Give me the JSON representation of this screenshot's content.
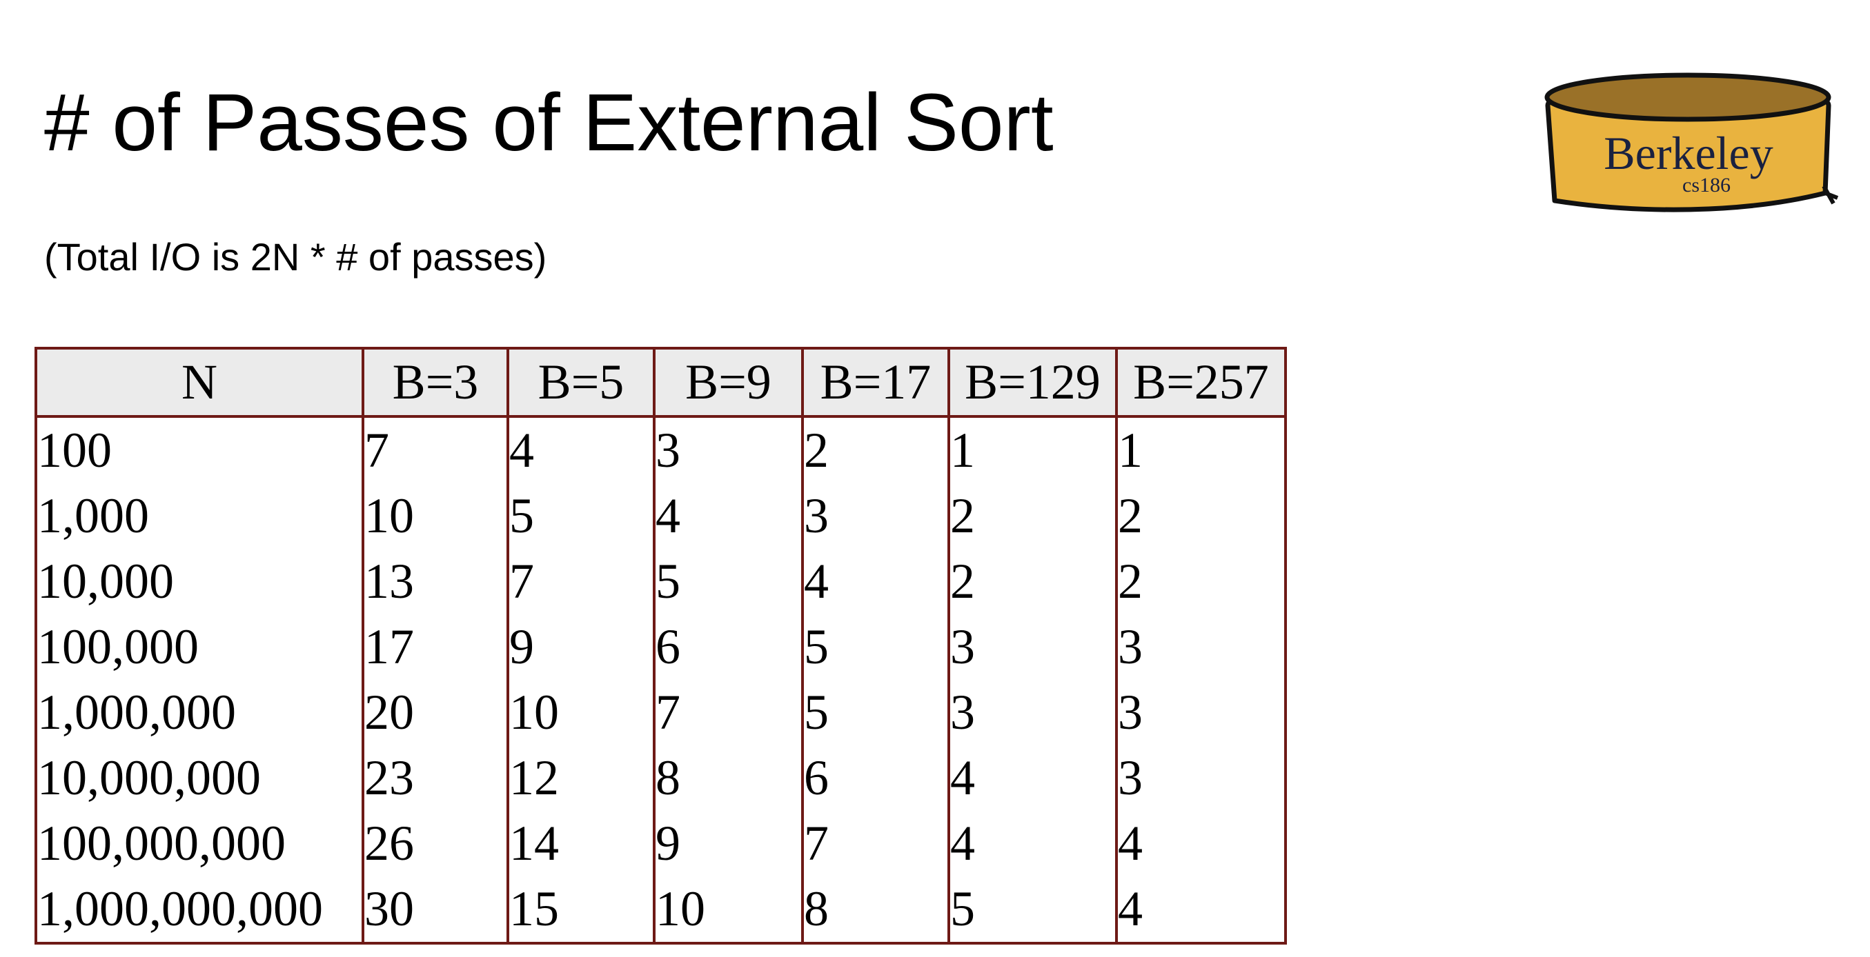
{
  "slide": {
    "title": "# of Passes of External Sort",
    "subtitle": "(Total I/O is 2N * # of passes)"
  },
  "logo": {
    "icon": "berkeley-cs186-logo",
    "text": "Berkeley",
    "subtext": "cs186",
    "colors": {
      "fill": "#e9b33f",
      "top": "#9a7128",
      "outline": "#111111"
    }
  },
  "colors": {
    "table_border": "#6e1a16",
    "header_bg": "#ebebeb"
  },
  "table": {
    "headers": [
      "N",
      "B=3",
      "B=5",
      "B=9",
      "B=17",
      "B=129",
      "B=257"
    ],
    "rows": [
      [
        "100",
        "7",
        "4",
        "3",
        "2",
        "1",
        "1"
      ],
      [
        "1,000",
        "10",
        "5",
        "4",
        "3",
        "2",
        "2"
      ],
      [
        "10,000",
        "13",
        "7",
        "5",
        "4",
        "2",
        "2"
      ],
      [
        "100,000",
        "17",
        "9",
        "6",
        "5",
        "3",
        "3"
      ],
      [
        "1,000,000",
        "20",
        "10",
        "7",
        "5",
        "3",
        "3"
      ],
      [
        "10,000,000",
        "23",
        "12",
        "8",
        "6",
        "4",
        "3"
      ],
      [
        "100,000,000",
        "26",
        "14",
        "9",
        "7",
        "4",
        "4"
      ],
      [
        "1,000,000,000",
        "30",
        "15",
        "10",
        "8",
        "5",
        "4"
      ]
    ]
  }
}
